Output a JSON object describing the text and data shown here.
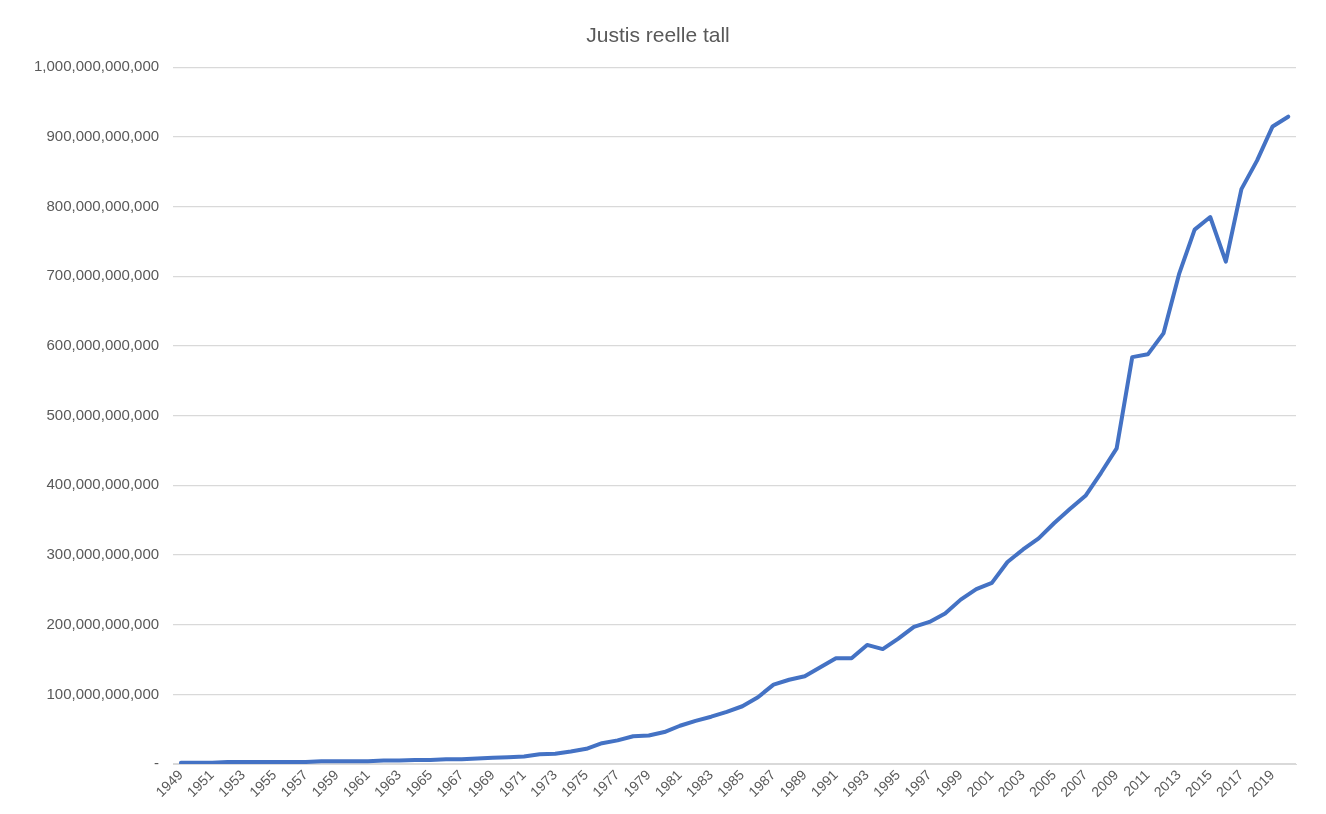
{
  "chart_data": {
    "type": "line",
    "title": "Justis reelle tall",
    "categories": [
      "1949",
      null,
      "1951",
      null,
      "1953",
      null,
      "1955",
      null,
      "1957",
      null,
      "1959",
      null,
      "1961",
      null,
      "1963",
      null,
      "1965",
      null,
      "1967",
      null,
      "1969",
      null,
      "1971",
      null,
      "1973",
      null,
      "1975",
      null,
      "1977",
      null,
      "1979",
      null,
      "1981",
      null,
      "1983",
      null,
      "1985",
      null,
      "1987",
      null,
      "1989",
      null,
      "1991",
      null,
      "1993",
      null,
      "1995",
      null,
      "1997",
      null,
      "1999",
      null,
      "2001",
      null,
      "2003",
      null,
      "2005",
      null,
      "2007",
      null,
      "2009",
      null,
      "2011",
      null,
      "2013",
      null,
      "2015",
      null,
      "2017",
      null,
      "2019",
      null
    ],
    "series": [
      {
        "color": "#4472c4",
        "values": [
          2000000000,
          2000000000,
          2000000000,
          3000000000,
          3000000000,
          3000000000,
          3000000000,
          3000000000,
          3000000000,
          4000000000,
          4000000000,
          4000000000,
          4000000000,
          5000000000,
          5000000000,
          6000000000,
          6000000000,
          7000000000,
          7000000000,
          8000000000,
          9000000000,
          10000000000,
          11000000000,
          14000000000,
          15000000000,
          18000000000,
          22000000000,
          30000000000,
          34000000000,
          40000000000,
          41000000000,
          46000000000,
          55000000000,
          62000000000,
          68000000000,
          75000000000,
          83000000000,
          96000000000,
          114000000000,
          121000000000,
          126000000000,
          139000000000,
          152000000000,
          152000000000,
          171000000000,
          165000000000,
          180000000000,
          197000000000,
          204000000000,
          216000000000,
          236000000000,
          251000000000,
          260000000000,
          290000000000,
          308000000000,
          324000000000,
          346000000000,
          366000000000,
          385000000000,
          418000000000,
          453000000000,
          584000000000,
          588000000000,
          618000000000,
          703000000000,
          767000000000,
          785000000000,
          721000000000,
          825000000000,
          866000000000,
          915000000000,
          929000000000
        ]
      }
    ],
    "ylim": [
      0,
      1000000000000
    ],
    "yticks": [
      {
        "value": 0,
        "label": "-"
      },
      {
        "value": 100000000000,
        "label": "100,000,000,000"
      },
      {
        "value": 200000000000,
        "label": "200,000,000,000"
      },
      {
        "value": 300000000000,
        "label": "300,000,000,000"
      },
      {
        "value": 400000000000,
        "label": "400,000,000,000"
      },
      {
        "value": 500000000000,
        "label": "500,000,000,000"
      },
      {
        "value": 600000000000,
        "label": "600,000,000,000"
      },
      {
        "value": 700000000000,
        "label": "700,000,000,000"
      },
      {
        "value": 800000000000,
        "label": "800,000,000,000"
      },
      {
        "value": 900000000000,
        "label": "900,000,000,000"
      },
      {
        "value": 1000000000000,
        "label": "1,000,000,000,000"
      }
    ],
    "grid": "y",
    "legend": false,
    "marker": "none",
    "line_style": "solid"
  }
}
